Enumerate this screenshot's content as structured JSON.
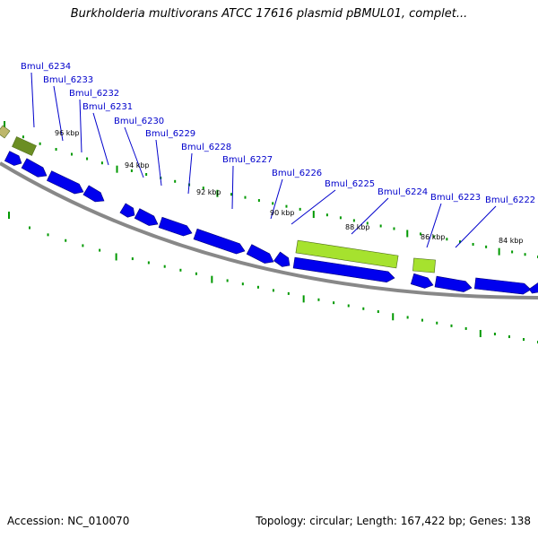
{
  "title": "Burkholderia multivorans ATCC 17616 plasmid pBMUL01, complet...",
  "footer": {
    "accession_line": "Accession: NC_010070",
    "summary_line": "Topology: circular; Length: 167,422 bp; Genes: 138"
  },
  "colors": {
    "cds_forward": "#0000ee",
    "cds_reverse": "#0000ee",
    "rna_light": "#a6e22e",
    "rna_dark": "#6b8e23",
    "backbone": "#888888",
    "tick": "#009900",
    "gene_label": "#0000cc",
    "leader": "#0000cc"
  },
  "tick_labels": [
    "96 kbp",
    "94 kbp",
    "92 kbp",
    "90 kbp",
    "88 kbp",
    "86 kbp",
    "84 kbp"
  ],
  "gene_labels": [
    "Bmul_6234",
    "Bmul_6233",
    "Bmul_6232",
    "Bmul_6231",
    "Bmul_6230",
    "Bmul_6229",
    "Bmul_6228",
    "Bmul_6227",
    "Bmul_6226",
    "Bmul_6225",
    "Bmul_6224",
    "Bmul_6223",
    "Bmul_6222"
  ]
}
